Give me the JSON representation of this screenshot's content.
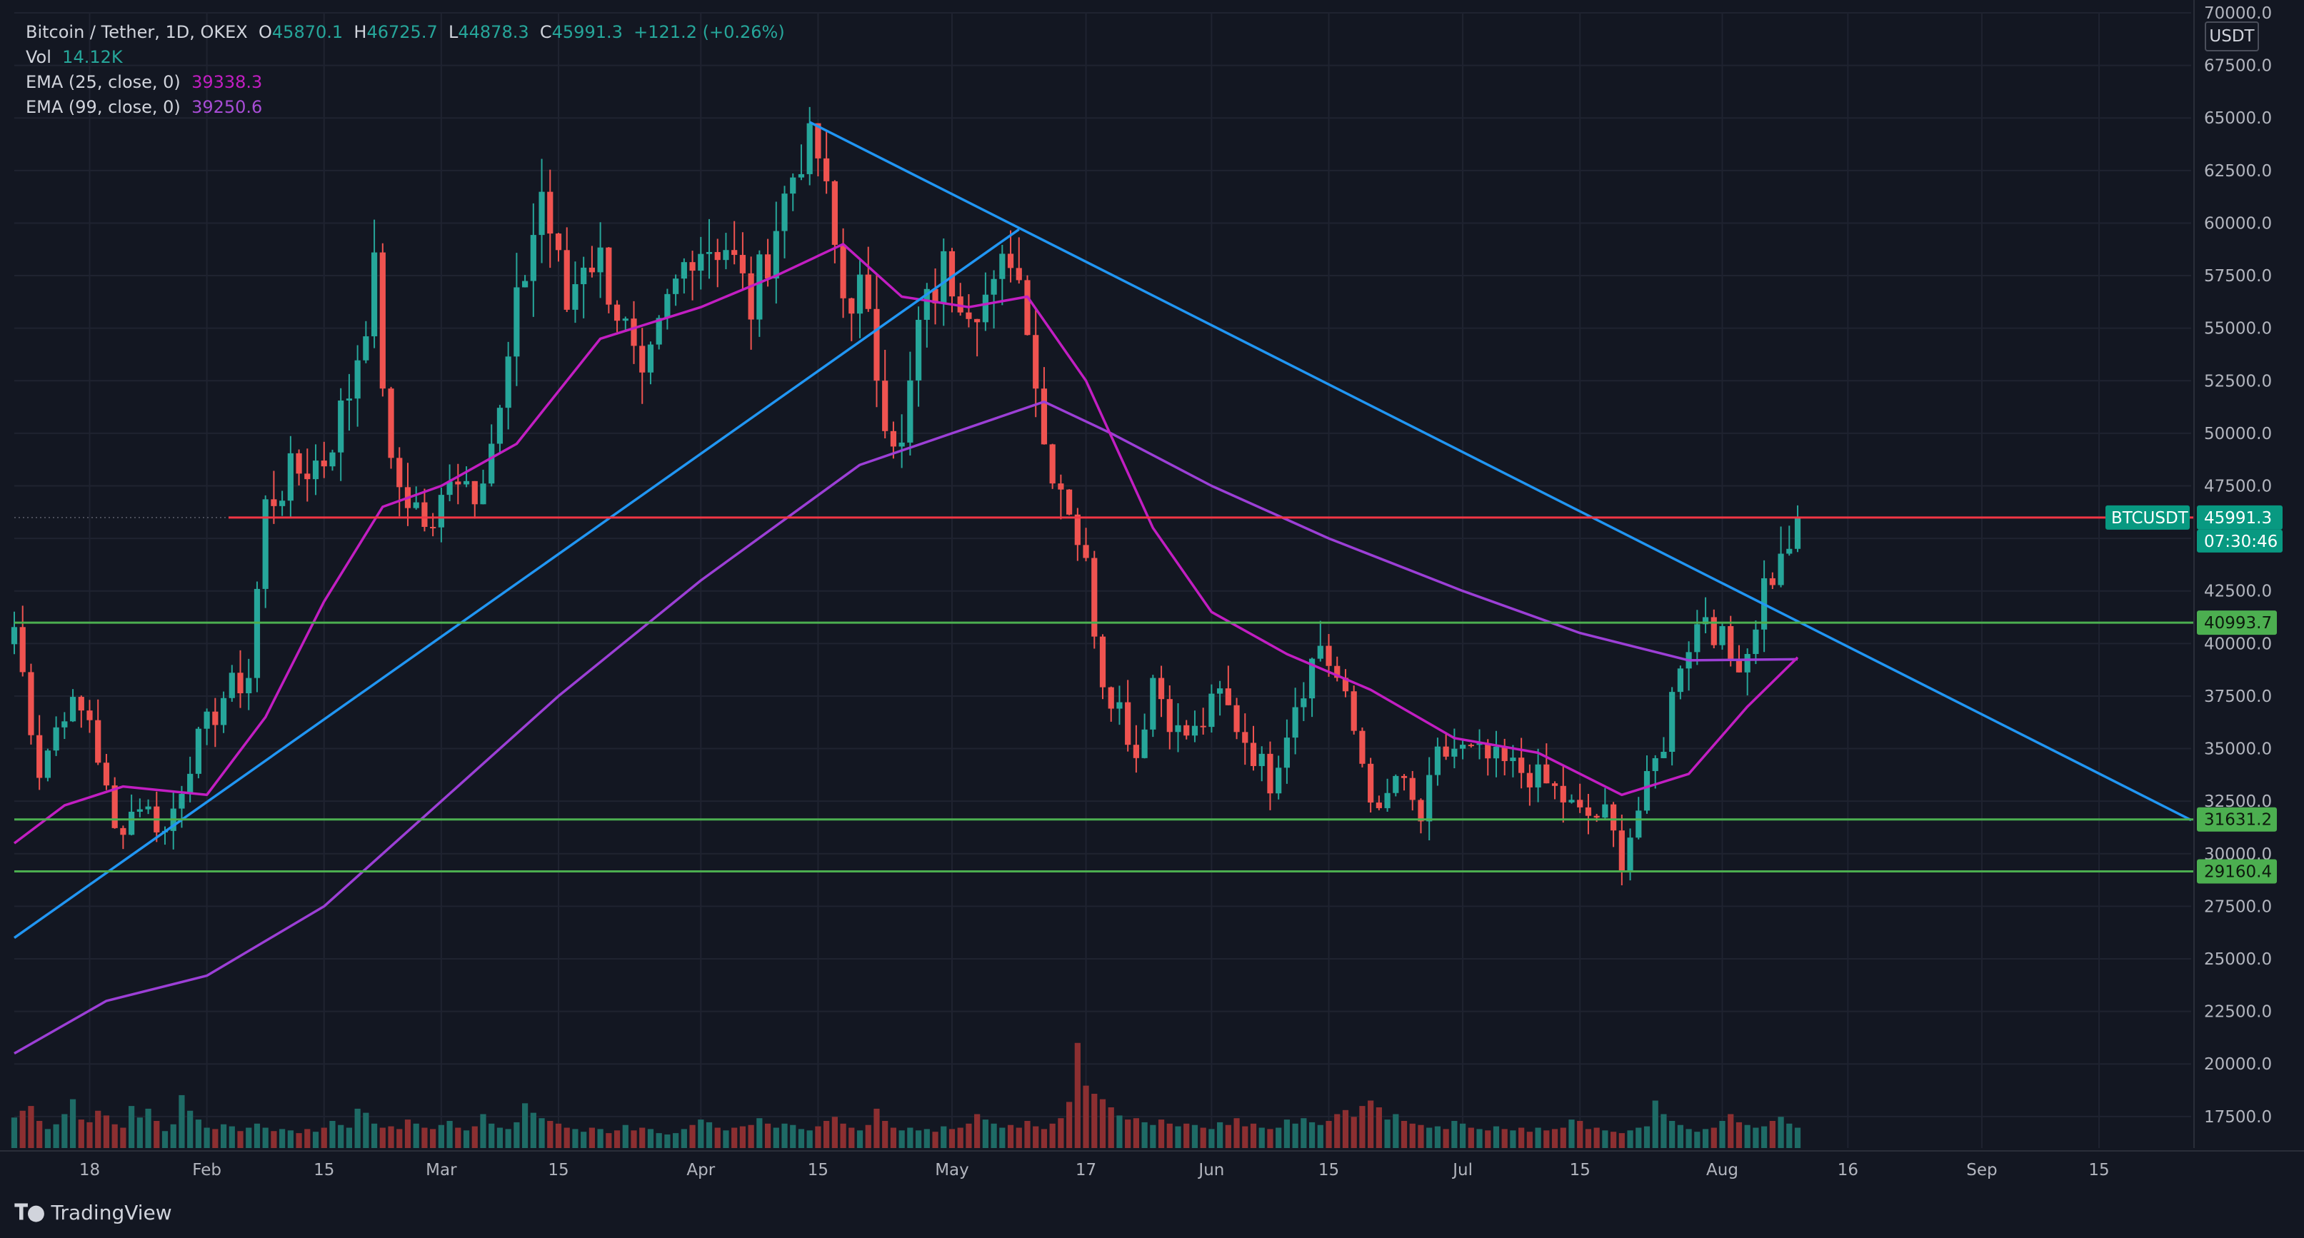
{
  "header": {
    "symbol_line": "Bitcoin / Tether, 1D, OKEX",
    "o_label": "O",
    "o_value": "45870.1",
    "h_label": "H",
    "h_value": "46725.7",
    "l_label": "L",
    "l_value": "44878.3",
    "c_label": "C",
    "c_value": "45991.3",
    "change": "+121.2 (+0.26%)",
    "vol_label": "Vol",
    "vol_value": "14.12K",
    "ema25_label": "EMA (25, close, 0)",
    "ema25_value": "39338.3",
    "ema99_label": "EMA (99, close, 0)",
    "ema99_value": "39250.6"
  },
  "branding": {
    "logo_text": "TradingView",
    "logo_icon": "tradingview-logo-icon"
  },
  "price_axis": {
    "unit": "USDT",
    "ticks": [
      17500,
      20000,
      22500,
      25000,
      27500,
      30000,
      32500,
      35000,
      37500,
      40000,
      42500,
      45000,
      47500,
      50000,
      52500,
      55000,
      57500,
      60000,
      62500,
      65000,
      67500,
      70000
    ],
    "tick_labels": [
      "17500.0",
      "20000.0",
      "22500.0",
      "25000.0",
      "27500.0",
      "30000.0",
      "32500.0",
      "35000.0",
      "37500.0",
      "40000.0",
      "42500.0",
      "45000.0",
      "47500.0",
      "50000.0",
      "52500.0",
      "55000.0",
      "57500.0",
      "60000.0",
      "62500.0",
      "65000.0",
      "67500.0",
      "70000.0"
    ],
    "symbol_badge": "BTCUSDT",
    "last_price_label": "45991.3",
    "countdown": "07:30:46",
    "level_labels": [
      "40993.7",
      "31631.2",
      "29160.4"
    ]
  },
  "time_axis": {
    "labels": [
      "18",
      "Feb",
      "15",
      "Mar",
      "15",
      "Apr",
      "15",
      "May",
      "17",
      "Jun",
      "15",
      "Jul",
      "15",
      "Aug",
      "16",
      "Sep",
      "15"
    ],
    "dates": [
      "2021-01-18",
      "2021-02-01",
      "2021-02-15",
      "2021-03-01",
      "2021-03-15",
      "2021-04-01",
      "2021-04-15",
      "2021-05-01",
      "2021-05-17",
      "2021-06-01",
      "2021-06-15",
      "2021-07-01",
      "2021-07-15",
      "2021-08-01",
      "2021-08-16",
      "2021-09-01",
      "2021-09-15"
    ]
  },
  "colors": {
    "background": "#131722",
    "up": "#26a69a",
    "down": "#ef5350",
    "up_volume": "#1e6b66",
    "down_volume": "#8c2f31",
    "ema25": "#c21ec2",
    "ema99": "#9c3fd6",
    "trendline": "#2196f3",
    "resistance": "#f23645",
    "support": "#4caf50",
    "grid": "#1f2330"
  },
  "chart_data": {
    "type": "candlestick",
    "title": "Bitcoin / Tether, 1D, OKEX",
    "x_range": [
      "2021-01-09",
      "2021-09-26"
    ],
    "y_range": [
      16000,
      70000
    ],
    "candle_anchors": [
      [
        "2021-01-09",
        40800
      ],
      [
        "2021-01-12",
        34000
      ],
      [
        "2021-01-15",
        37000
      ],
      [
        "2021-01-18",
        36500
      ],
      [
        "2021-01-21",
        31000
      ],
      [
        "2021-01-24",
        32500
      ],
      [
        "2021-01-27",
        31000
      ],
      [
        "2021-01-30",
        34500
      ],
      [
        "2021-02-03",
        37500
      ],
      [
        "2021-02-06",
        38500
      ],
      [
        "2021-02-08",
        46500
      ],
      [
        "2021-02-11",
        48000
      ],
      [
        "2021-02-15",
        48800
      ],
      [
        "2021-02-18",
        52000
      ],
      [
        "2021-02-21",
        57500
      ],
      [
        "2021-02-23",
        48000
      ],
      [
        "2021-02-26",
        46500
      ],
      [
        "2021-02-28",
        45000
      ],
      [
        "2021-03-02",
        48500
      ],
      [
        "2021-03-05",
        47500
      ],
      [
        "2021-03-08",
        50800
      ],
      [
        "2021-03-10",
        55800
      ],
      [
        "2021-03-13",
        61500
      ],
      [
        "2021-03-16",
        56000
      ],
      [
        "2021-03-18",
        58500
      ],
      [
        "2021-03-20",
        58200
      ],
      [
        "2021-03-23",
        54800
      ],
      [
        "2021-03-25",
        51800
      ],
      [
        "2021-03-28",
        56000
      ],
      [
        "2021-03-31",
        59000
      ],
      [
        "2021-04-04",
        59000
      ],
      [
        "2021-04-07",
        56000
      ],
      [
        "2021-04-10",
        60000
      ],
      [
        "2021-04-13",
        63500
      ],
      [
        "2021-04-15",
        63200
      ],
      [
        "2021-04-18",
        56500
      ],
      [
        "2021-04-20",
        56800
      ],
      [
        "2021-04-23",
        51200
      ],
      [
        "2021-04-25",
        49100
      ],
      [
        "2021-04-27",
        55000
      ],
      [
        "2021-04-30",
        57800
      ],
      [
        "2021-05-03",
        56500
      ],
      [
        "2021-05-06",
        56500
      ],
      [
        "2021-05-08",
        58800
      ],
      [
        "2021-05-10",
        55800
      ],
      [
        "2021-05-12",
        49500
      ],
      [
        "2021-05-15",
        46700
      ],
      [
        "2021-05-17",
        43500
      ],
      [
        "2021-05-19",
        38500
      ],
      [
        "2021-05-21",
        37000
      ],
      [
        "2021-05-23",
        34700
      ],
      [
        "2021-05-25",
        38400
      ],
      [
        "2021-05-28",
        35700
      ],
      [
        "2021-05-30",
        35700
      ],
      [
        "2021-06-02",
        37500
      ],
      [
        "2021-06-05",
        35500
      ],
      [
        "2021-06-08",
        33500
      ],
      [
        "2021-06-11",
        37300
      ],
      [
        "2021-06-14",
        40000
      ],
      [
        "2021-06-16",
        38300
      ],
      [
        "2021-06-18",
        35800
      ],
      [
        "2021-06-21",
        31600
      ],
      [
        "2021-06-23",
        33700
      ],
      [
        "2021-06-26",
        31600
      ],
      [
        "2021-06-28",
        34500
      ],
      [
        "2021-06-30",
        35000
      ],
      [
        "2021-07-03",
        34600
      ],
      [
        "2021-07-06",
        34200
      ],
      [
        "2021-07-09",
        33800
      ],
      [
        "2021-07-12",
        33000
      ],
      [
        "2021-07-15",
        31800
      ],
      [
        "2021-07-18",
        31800
      ],
      [
        "2021-07-20",
        29800
      ],
      [
        "2021-07-22",
        32100
      ],
      [
        "2021-07-25",
        35400
      ],
      [
        "2021-07-27",
        39400
      ],
      [
        "2021-07-30",
        41600
      ],
      [
        "2021-08-02",
        39200
      ],
      [
        "2021-08-04",
        39700
      ],
      [
        "2021-08-06",
        42800
      ],
      [
        "2021-08-08",
        43800
      ],
      [
        "2021-08-10",
        45991
      ]
    ],
    "ema25": [
      [
        "2021-01-09",
        30500
      ],
      [
        "2021-01-15",
        32300
      ],
      [
        "2021-01-22",
        33200
      ],
      [
        "2021-02-01",
        32800
      ],
      [
        "2021-02-08",
        36500
      ],
      [
        "2021-02-15",
        42000
      ],
      [
        "2021-02-22",
        46500
      ],
      [
        "2021-03-01",
        47500
      ],
      [
        "2021-03-10",
        49500
      ],
      [
        "2021-03-20",
        54500
      ],
      [
        "2021-04-01",
        56000
      ],
      [
        "2021-04-10",
        57500
      ],
      [
        "2021-04-18",
        59000
      ],
      [
        "2021-04-25",
        56500
      ],
      [
        "2021-05-03",
        56000
      ],
      [
        "2021-05-10",
        56500
      ],
      [
        "2021-05-17",
        52500
      ],
      [
        "2021-05-25",
        45500
      ],
      [
        "2021-06-01",
        41500
      ],
      [
        "2021-06-10",
        39500
      ],
      [
        "2021-06-20",
        37800
      ],
      [
        "2021-06-30",
        35500
      ],
      [
        "2021-07-10",
        34800
      ],
      [
        "2021-07-20",
        32800
      ],
      [
        "2021-07-28",
        33800
      ],
      [
        "2021-08-04",
        37000
      ],
      [
        "2021-08-10",
        39338
      ]
    ],
    "ema99": [
      [
        "2021-01-09",
        20500
      ],
      [
        "2021-01-20",
        23000
      ],
      [
        "2021-02-01",
        24200
      ],
      [
        "2021-02-15",
        27500
      ],
      [
        "2021-03-01",
        32500
      ],
      [
        "2021-03-15",
        37500
      ],
      [
        "2021-04-01",
        43000
      ],
      [
        "2021-04-20",
        48500
      ],
      [
        "2021-05-01",
        50000
      ],
      [
        "2021-05-12",
        51500
      ],
      [
        "2021-05-20",
        50000
      ],
      [
        "2021-06-01",
        47500
      ],
      [
        "2021-06-15",
        45000
      ],
      [
        "2021-07-01",
        42500
      ],
      [
        "2021-07-15",
        40500
      ],
      [
        "2021-07-28",
        39200
      ],
      [
        "2021-08-10",
        39250
      ]
    ],
    "volume_relative": [
      0.45,
      0.55,
      0.62,
      0.4,
      0.28,
      0.35,
      0.5,
      0.72,
      0.42,
      0.38,
      0.55,
      0.48,
      0.35,
      0.3,
      0.62,
      0.45,
      0.58,
      0.4,
      0.25,
      0.35,
      0.78,
      0.55,
      0.42,
      0.3,
      0.28,
      0.35,
      0.32,
      0.25,
      0.3,
      0.36,
      0.3,
      0.25,
      0.28,
      0.26,
      0.22,
      0.28,
      0.24,
      0.3,
      0.4,
      0.34,
      0.3,
      0.58,
      0.52,
      0.36,
      0.3,
      0.32,
      0.28,
      0.42,
      0.36,
      0.3,
      0.28,
      0.34,
      0.4,
      0.3,
      0.26,
      0.32,
      0.5,
      0.36,
      0.3,
      0.28,
      0.38,
      0.66,
      0.52,
      0.44,
      0.4,
      0.36,
      0.3,
      0.28,
      0.24,
      0.3,
      0.28,
      0.22,
      0.26,
      0.34,
      0.26,
      0.3,
      0.28,
      0.22,
      0.2,
      0.22,
      0.28,
      0.34,
      0.42,
      0.38,
      0.3,
      0.26,
      0.3,
      0.32,
      0.34,
      0.44,
      0.36,
      0.3,
      0.36,
      0.34,
      0.28,
      0.26,
      0.32,
      0.4,
      0.46,
      0.36,
      0.3,
      0.26,
      0.34,
      0.58,
      0.4,
      0.3,
      0.26,
      0.3,
      0.26,
      0.28,
      0.24,
      0.32,
      0.28,
      0.3,
      0.36,
      0.5,
      0.42,
      0.36,
      0.3,
      0.34,
      0.3,
      0.4,
      0.32,
      0.28,
      0.36,
      0.44,
      0.68,
      1.55,
      0.92,
      0.8,
      0.72,
      0.6,
      0.48,
      0.42,
      0.44,
      0.38,
      0.34,
      0.42,
      0.36,
      0.32,
      0.36,
      0.34,
      0.3,
      0.28,
      0.38,
      0.34,
      0.44,
      0.32,
      0.36,
      0.3,
      0.28,
      0.3,
      0.42,
      0.36,
      0.44,
      0.38,
      0.34,
      0.4,
      0.5,
      0.56,
      0.46,
      0.62,
      0.7,
      0.6,
      0.42,
      0.5,
      0.4,
      0.36,
      0.34,
      0.3,
      0.32,
      0.28,
      0.4,
      0.36,
      0.3,
      0.28,
      0.26,
      0.32,
      0.28,
      0.26,
      0.3,
      0.24,
      0.3,
      0.26,
      0.28,
      0.3,
      0.42,
      0.4,
      0.28,
      0.3,
      0.26,
      0.24,
      0.22,
      0.26,
      0.3,
      0.32,
      0.7,
      0.5,
      0.4,
      0.34,
      0.28,
      0.24,
      0.28,
      0.3,
      0.4,
      0.5,
      0.38,
      0.34,
      0.3,
      0.32,
      0.4,
      0.46,
      0.36,
      0.3,
      0.28,
      0.32,
      0.4,
      0.34,
      0.3,
      0.66,
      0.56,
      0.44,
      0.38,
      0.3
    ],
    "trendlines": [
      {
        "name": "ascending",
        "from": [
          "2021-01-09",
          26000
        ],
        "to": [
          "2021-05-09",
          59700
        ]
      },
      {
        "name": "descending",
        "from": [
          "2021-04-14",
          64800
        ],
        "to": [
          "2021-09-26",
          31600
        ]
      }
    ],
    "horizontal_levels": [
      {
        "price": 45991.3,
        "kind": "resistance",
        "label": "45991.3"
      },
      {
        "price": 40993.7,
        "kind": "support",
        "label": "40993.7"
      },
      {
        "price": 31631.2,
        "kind": "support",
        "label": "31631.2"
      },
      {
        "price": 29160.4,
        "kind": "support",
        "label": "29160.4"
      }
    ]
  }
}
